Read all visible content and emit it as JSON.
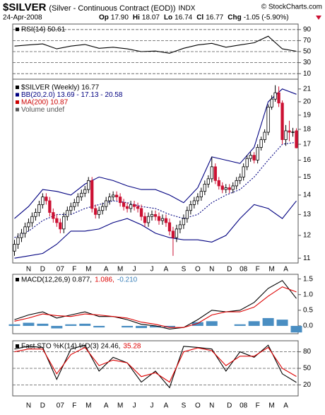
{
  "header": {
    "symbol": "$SILVER",
    "name": "(Silver - Continuous Contract (EOD))",
    "exchange": "INDX",
    "source": "© StockCharts.com",
    "date": "24-Apr-2008",
    "quote": [
      {
        "label": "Op",
        "value": "17.90"
      },
      {
        "label": "Hi",
        "value": "18.07"
      },
      {
        "label": "Lo",
        "value": "16.74"
      },
      {
        "label": "Cl",
        "value": "16.77"
      },
      {
        "label": "Chg",
        "value": "-1.05 (-5.90%)"
      }
    ]
  },
  "chart_data": [
    {
      "type": "line",
      "legend": [
        {
          "text": "RSI(14) 50.61",
          "color": "#000000"
        }
      ],
      "x": [
        0,
        4,
        8,
        12,
        16,
        20,
        24,
        28,
        32,
        36,
        40,
        44,
        48,
        52,
        56,
        60,
        64,
        68,
        72,
        76,
        80
      ],
      "series": [
        {
          "color": "#000000",
          "values": [
            60,
            62,
            64,
            55,
            60,
            63,
            56,
            58,
            55,
            50,
            51,
            47,
            56,
            62,
            65,
            58,
            62,
            66,
            78,
            55,
            50.61
          ]
        }
      ],
      "ylim": [
        0,
        100
      ],
      "yticks": [
        90,
        70,
        50,
        30,
        10
      ],
      "grid": true
    },
    {
      "type": "candlestick",
      "legend": [
        {
          "text": "$SILVER (Weekly) 16.77",
          "color": "#000000"
        },
        {
          "text": "BB(20,2.0) 13.69 - 17.13 - 20.58",
          "color": "#000080"
        },
        {
          "text": "MA(200) 10.87",
          "color": "#cc0000"
        },
        {
          "text": "Volume undef",
          "color": "#555555"
        }
      ],
      "categories": [
        null,
        null,
        null,
        null,
        "N",
        null,
        null,
        null,
        "D",
        null,
        null,
        null,
        null,
        "07",
        null,
        null,
        null,
        "F",
        null,
        null,
        null,
        "M",
        null,
        null,
        null,
        null,
        "A",
        null,
        null,
        null,
        "M",
        null,
        null,
        null,
        "J",
        null,
        null,
        null,
        null,
        "J",
        null,
        null,
        null,
        "A",
        null,
        null,
        null,
        null,
        "S",
        null,
        null,
        null,
        "O",
        null,
        null,
        null,
        "N",
        null,
        null,
        null,
        null,
        "D",
        null,
        null,
        null,
        "08",
        null,
        null,
        null,
        "F",
        null,
        null,
        null,
        "M",
        null,
        null,
        null,
        "A",
        null,
        null,
        null
      ],
      "open": [
        11.3,
        11.6,
        11.9,
        12.1,
        12.4,
        12.6,
        12.9,
        13.1,
        13.5,
        13.9,
        13.7,
        13.1,
        12.8,
        12.6,
        12.3,
        12.9,
        13.2,
        13.4,
        13.6,
        13.9,
        14.1,
        14.3,
        14.8,
        13.3,
        13.0,
        13.2,
        13.4,
        13.7,
        13.9,
        14.0,
        13.9,
        13.6,
        13.4,
        13.3,
        13.5,
        13.4,
        13.3,
        12.9,
        12.6,
        12.9,
        13.0,
        12.9,
        12.7,
        12.8,
        12.6,
        12.2,
        11.9,
        12.3,
        12.5,
        12.8,
        13.2,
        13.5,
        13.7,
        13.9,
        14.2,
        14.6,
        14.9,
        15.6,
        14.8,
        14.5,
        14.3,
        14.4,
        14.3,
        14.5,
        14.8,
        15.0,
        15.6,
        16.1,
        16.3,
        16.0,
        16.8,
        17.3,
        17.8,
        19.6,
        20.2,
        20.7,
        19.9,
        17.3,
        17.9,
        17.8,
        17.9
      ],
      "high": [
        11.8,
        12.1,
        12.3,
        12.6,
        12.8,
        13.1,
        13.3,
        13.7,
        14.1,
        14.1,
        13.9,
        13.3,
        13.0,
        12.8,
        13.1,
        13.4,
        13.6,
        13.8,
        14.1,
        14.3,
        14.5,
        15.0,
        15.0,
        13.5,
        13.4,
        13.6,
        13.9,
        14.1,
        14.2,
        14.2,
        14.1,
        13.8,
        13.6,
        13.7,
        13.7,
        13.6,
        13.5,
        13.1,
        13.1,
        13.2,
        13.2,
        13.1,
        13.0,
        13.0,
        12.8,
        12.4,
        12.5,
        12.7,
        13.0,
        13.4,
        13.7,
        13.9,
        14.1,
        14.4,
        14.8,
        15.1,
        16.2,
        15.8,
        15.0,
        14.7,
        14.6,
        14.6,
        14.7,
        15.0,
        15.2,
        15.8,
        16.3,
        16.5,
        16.5,
        17.0,
        17.5,
        18.0,
        19.8,
        20.5,
        21.3,
        21.2,
        20.1,
        18.3,
        18.6,
        18.1,
        18.07
      ],
      "low": [
        11.1,
        11.4,
        11.7,
        11.9,
        12.2,
        12.4,
        12.7,
        12.9,
        13.3,
        13.5,
        12.9,
        12.6,
        12.4,
        12.1,
        12.1,
        12.7,
        13.0,
        13.2,
        13.4,
        13.7,
        13.9,
        14.1,
        13.1,
        12.8,
        12.8,
        13.0,
        13.2,
        13.5,
        13.7,
        13.7,
        13.4,
        13.2,
        13.1,
        13.1,
        13.2,
        13.1,
        12.7,
        12.4,
        12.4,
        12.7,
        12.7,
        12.5,
        12.5,
        12.4,
        12.0,
        11.1,
        11.7,
        12.1,
        12.3,
        12.6,
        13.0,
        13.3,
        13.5,
        13.7,
        14.0,
        14.4,
        14.7,
        14.6,
        14.3,
        14.1,
        14.1,
        14.1,
        14.1,
        14.3,
        14.6,
        14.8,
        15.4,
        15.9,
        15.8,
        15.8,
        16.6,
        17.1,
        17.6,
        19.4,
        20.0,
        19.6,
        17.0,
        16.9,
        17.2,
        17.5,
        16.74
      ],
      "close": [
        11.6,
        11.9,
        12.1,
        12.4,
        12.6,
        12.9,
        13.1,
        13.5,
        13.9,
        13.7,
        13.1,
        12.8,
        12.6,
        12.3,
        12.9,
        13.2,
        13.4,
        13.6,
        13.9,
        14.1,
        14.3,
        14.8,
        13.3,
        13.0,
        13.2,
        13.4,
        13.7,
        13.9,
        14.0,
        13.9,
        13.6,
        13.4,
        13.3,
        13.5,
        13.4,
        13.3,
        12.9,
        12.6,
        12.9,
        13.0,
        12.9,
        12.7,
        12.8,
        12.6,
        12.2,
        11.9,
        12.3,
        12.5,
        12.8,
        13.2,
        13.5,
        13.7,
        13.9,
        14.2,
        14.6,
        14.9,
        15.6,
        14.8,
        14.5,
        14.3,
        14.4,
        14.3,
        14.5,
        14.8,
        15.0,
        15.6,
        16.1,
        16.3,
        16.0,
        16.8,
        17.3,
        17.8,
        19.6,
        20.2,
        20.7,
        19.9,
        17.3,
        17.9,
        17.8,
        17.82,
        16.77
      ],
      "up_color": "#000000",
      "down_color": "#cc1133",
      "bollinger": {
        "color": "#000080",
        "x": [
          0,
          4,
          8,
          12,
          16,
          20,
          24,
          28,
          32,
          36,
          40,
          44,
          48,
          52,
          56,
          60,
          64,
          68,
          72,
          76,
          80
        ],
        "upper": [
          12.8,
          13.4,
          14.3,
          14.2,
          14.0,
          14.6,
          15.0,
          14.8,
          14.5,
          14.3,
          14.3,
          14.0,
          13.6,
          14.4,
          16.2,
          16.0,
          15.8,
          16.8,
          20.0,
          21.0,
          20.58
        ],
        "middle": [
          11.9,
          12.2,
          12.7,
          13.0,
          13.0,
          13.3,
          13.5,
          13.7,
          13.6,
          13.4,
          13.3,
          13.0,
          12.8,
          13.0,
          13.6,
          14.0,
          14.3,
          15.0,
          16.0,
          17.0,
          17.13
        ],
        "lower": [
          11.0,
          11.1,
          11.2,
          11.6,
          12.2,
          12.2,
          12.3,
          12.6,
          12.8,
          12.5,
          12.1,
          11.9,
          11.8,
          11.8,
          11.7,
          12.0,
          12.8,
          13.5,
          13.3,
          12.8,
          13.69
        ]
      },
      "ylim": [
        10.8,
        21.8
      ],
      "log": true,
      "yticks": [
        11,
        12,
        13,
        14,
        15,
        16,
        17,
        18,
        19,
        20,
        21
      ],
      "grid": false
    },
    {
      "type": "line",
      "legend": [
        {
          "text": "MACD(12,26,9) 0.877,",
          "color": "#000000"
        },
        {
          "text": "1.086,",
          "color": "#dd0000"
        },
        {
          "text": "-0.210",
          "color": "#3a7fb8"
        }
      ],
      "x": [
        0,
        4,
        8,
        12,
        16,
        20,
        24,
        28,
        32,
        36,
        40,
        44,
        48,
        52,
        56,
        60,
        64,
        68,
        72,
        76,
        80
      ],
      "series": [
        {
          "color": "#000000",
          "values": [
            0.2,
            0.35,
            0.45,
            0.25,
            0.35,
            0.45,
            0.3,
            0.3,
            0.2,
            0.05,
            0.0,
            -0.1,
            -0.05,
            0.2,
            0.5,
            0.45,
            0.5,
            0.75,
            1.2,
            1.45,
            0.877
          ]
        },
        {
          "color": "#dd0000",
          "values": [
            0.15,
            0.25,
            0.38,
            0.33,
            0.3,
            0.38,
            0.35,
            0.3,
            0.25,
            0.12,
            0.05,
            -0.05,
            -0.05,
            0.08,
            0.35,
            0.45,
            0.45,
            0.6,
            0.95,
            1.25,
            1.086
          ]
        }
      ],
      "histogram": {
        "color": "#4a8ec2",
        "values": [
          0.05,
          0.1,
          0.07,
          -0.08,
          0.05,
          0.07,
          -0.05,
          0,
          -0.05,
          -0.07,
          -0.05,
          -0.05,
          0,
          0.12,
          0.15,
          0,
          0.05,
          0.15,
          0.25,
          0.2,
          -0.21
        ]
      },
      "ylim": [
        -0.25,
        1.65
      ],
      "yticks": [
        1.5,
        {
          "value": 1.0,
          "label": "1.0"
        },
        0.5,
        {
          "value": 0,
          "label": "0.0"
        }
      ],
      "grid": false
    },
    {
      "type": "line",
      "legend": [
        {
          "text": "Fast STO %K(14) %D(3) 24.46,",
          "color": "#000000"
        },
        {
          "text": "35.28",
          "color": "#dd0000"
        }
      ],
      "x": [
        0,
        4,
        8,
        12,
        16,
        20,
        24,
        28,
        32,
        36,
        40,
        44,
        48,
        52,
        56,
        60,
        64,
        68,
        72,
        76,
        80
      ],
      "series": [
        {
          "color": "#000000",
          "values": [
            85,
            90,
            88,
            30,
            85,
            92,
            45,
            70,
            60,
            25,
            45,
            15,
            90,
            88,
            85,
            45,
            80,
            70,
            92,
            40,
            24.46
          ]
        },
        {
          "color": "#dd0000",
          "values": [
            80,
            85,
            85,
            40,
            75,
            88,
            55,
            65,
            60,
            35,
            42,
            25,
            80,
            87,
            82,
            55,
            72,
            72,
            88,
            50,
            35.28
          ]
        }
      ],
      "ylim": [
        0,
        100
      ],
      "yticks": [
        80,
        50,
        20
      ],
      "grid": true
    }
  ]
}
